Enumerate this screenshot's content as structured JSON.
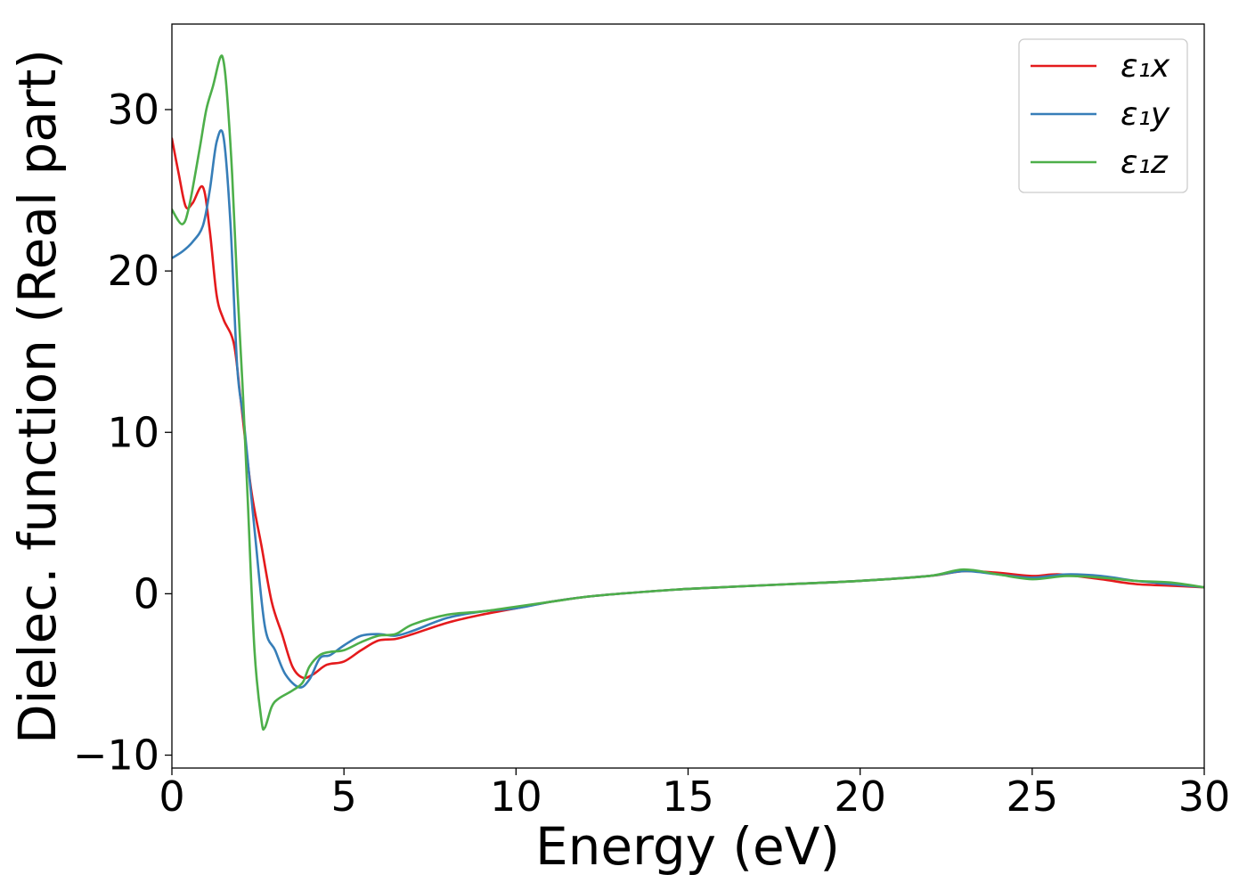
{
  "chart_data": {
    "type": "line",
    "xlabel": "Energy (eV)",
    "ylabel": "Dielec. function (Real part)",
    "xlim": [
      0,
      30
    ],
    "ylim": [
      -10.8,
      35.3
    ],
    "xticks": [
      0,
      5,
      10,
      15,
      20,
      25,
      30
    ],
    "xtick_labels": [
      "0",
      "5",
      "10",
      "15",
      "20",
      "25",
      "30"
    ],
    "yticks": [
      -10,
      0,
      10,
      20,
      30
    ],
    "ytick_labels": [
      "−10",
      "0",
      "10",
      "20",
      "30"
    ],
    "grid": false,
    "legend_position": "top-right",
    "series": [
      {
        "name": "ε₁x",
        "color": "#e41a1c",
        "x": [
          0,
          0.2,
          0.4,
          0.6,
          0.9,
          1.1,
          1.3,
          1.5,
          1.8,
          2.0,
          2.3,
          2.6,
          2.9,
          3.2,
          3.5,
          3.8,
          4.1,
          4.5,
          5.0,
          5.5,
          6.0,
          6.5,
          7.0,
          8.0,
          9.0,
          10,
          11,
          12,
          13,
          15,
          18,
          20,
          22,
          23,
          24,
          25,
          25.8,
          27,
          28,
          29,
          30
        ],
        "y": [
          28.2,
          26.0,
          24.0,
          24.2,
          25.2,
          22.5,
          18.5,
          17.0,
          15.5,
          12.0,
          6.5,
          3.0,
          -0.5,
          -2.5,
          -4.5,
          -5.2,
          -5.0,
          -4.4,
          -4.2,
          -3.5,
          -2.9,
          -2.8,
          -2.5,
          -1.8,
          -1.3,
          -0.9,
          -0.5,
          -0.2,
          0.0,
          0.3,
          0.6,
          0.8,
          1.1,
          1.4,
          1.3,
          1.1,
          1.2,
          0.9,
          0.6,
          0.5,
          0.4
        ]
      },
      {
        "name": "ε₁y",
        "color": "#377eb8",
        "x": [
          0,
          0.3,
          0.6,
          0.9,
          1.1,
          1.3,
          1.5,
          1.7,
          1.9,
          2.1,
          2.4,
          2.7,
          3.0,
          3.3,
          3.7,
          4.0,
          4.3,
          4.6,
          5.0,
          5.5,
          6.0,
          6.5,
          7.0,
          8.0,
          9.0,
          10,
          11,
          12,
          13,
          15,
          18,
          20,
          22,
          23,
          24,
          25,
          26,
          27,
          28,
          29,
          30
        ],
        "y": [
          20.8,
          21.2,
          21.8,
          22.8,
          25.0,
          28.0,
          28.3,
          23.0,
          14.0,
          10.5,
          4.0,
          -2.0,
          -3.5,
          -5.0,
          -5.8,
          -5.3,
          -4.0,
          -3.8,
          -3.2,
          -2.6,
          -2.5,
          -2.6,
          -2.3,
          -1.5,
          -1.1,
          -0.9,
          -0.5,
          -0.2,
          0.0,
          0.3,
          0.6,
          0.8,
          1.1,
          1.4,
          1.2,
          1.0,
          1.2,
          1.1,
          0.8,
          0.6,
          0.4
        ]
      },
      {
        "name": "ε₁z",
        "color": "#4daf4a",
        "x": [
          0,
          0.3,
          0.5,
          0.8,
          1.0,
          1.2,
          1.4,
          1.5,
          1.6,
          1.75,
          1.9,
          2.05,
          2.2,
          2.4,
          2.6,
          2.7,
          2.9,
          3.1,
          3.5,
          3.8,
          4.0,
          4.3,
          4.6,
          5.0,
          5.5,
          6.0,
          6.5,
          7.0,
          8.0,
          9.0,
          10,
          11,
          12,
          13,
          15,
          18,
          20,
          22,
          23,
          24,
          25,
          26,
          27,
          28,
          29,
          30
        ],
        "y": [
          23.8,
          22.9,
          24.0,
          27.5,
          30.0,
          31.5,
          33.2,
          33.0,
          31.0,
          26.0,
          19.0,
          13.0,
          6.0,
          -3.5,
          -7.8,
          -8.3,
          -7.0,
          -6.5,
          -6.0,
          -5.5,
          -4.5,
          -3.8,
          -3.6,
          -3.5,
          -3.0,
          -2.6,
          -2.5,
          -1.9,
          -1.3,
          -1.1,
          -0.8,
          -0.5,
          -0.2,
          0.0,
          0.3,
          0.6,
          0.8,
          1.1,
          1.5,
          1.2,
          0.9,
          1.1,
          1.0,
          0.8,
          0.7,
          0.4
        ]
      }
    ]
  }
}
